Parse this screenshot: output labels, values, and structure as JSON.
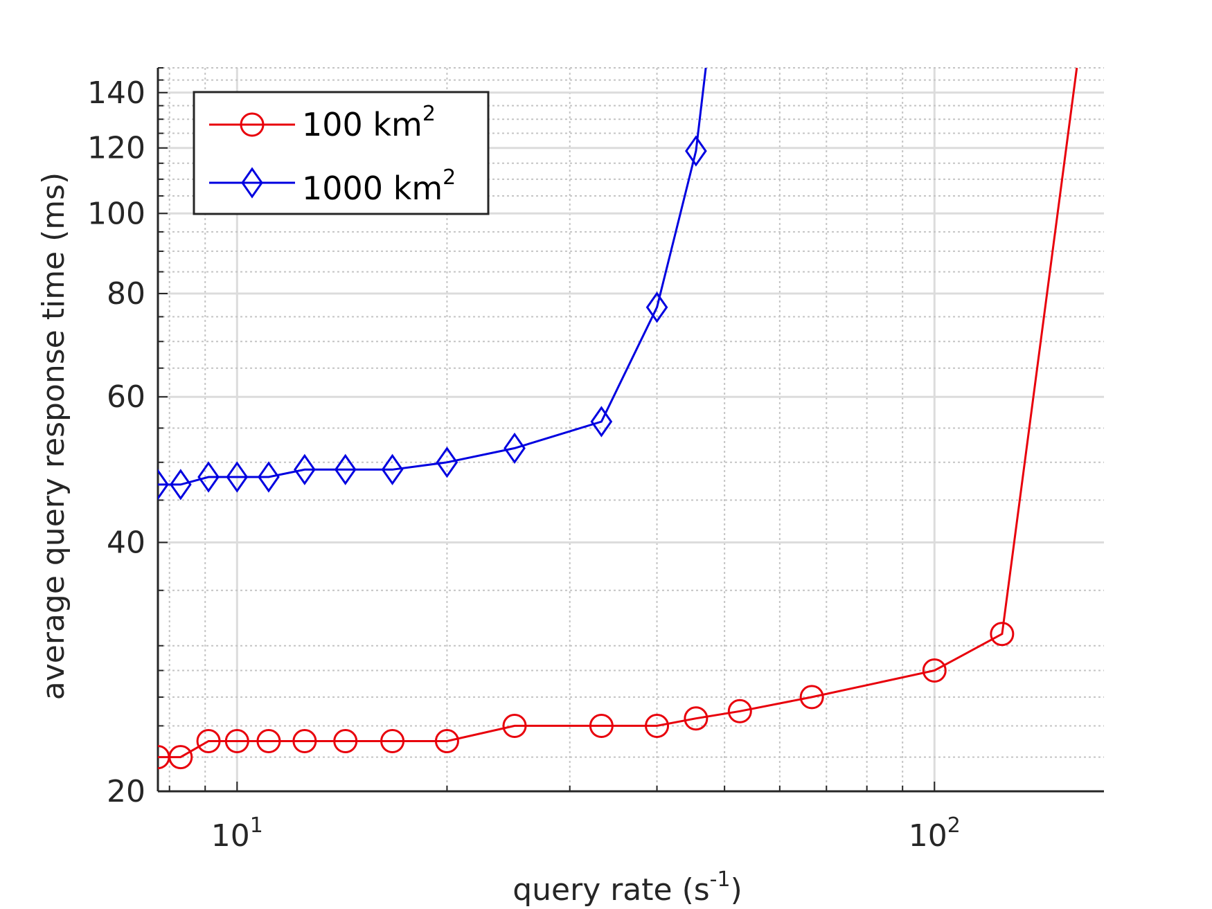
{
  "chart_data": {
    "type": "line",
    "title": "",
    "xlabel": "query rate (s",
    "xlabel_sup": "-1",
    "xlabel_suffix": ")",
    "ylabel": "average query response time (ms)",
    "x_scale": "log",
    "y_scale": "log",
    "xlim": [
      7.7,
      175
    ],
    "ylim": [
      20,
      150
    ],
    "grid": "major and minor",
    "legend_position": "top-left",
    "x_ticks": [
      {
        "value": 10,
        "base": "10",
        "exp": "1"
      },
      {
        "value": 100,
        "base": "10",
        "exp": "2"
      }
    ],
    "y_ticks": [
      20,
      40,
      60,
      80,
      100,
      120,
      140
    ],
    "series": [
      {
        "name": "100 km",
        "name_sup": "2",
        "color": "#e8000b",
        "marker": "circle",
        "x": [
          7.7,
          8.3,
          9.1,
          10,
          11.1,
          12.5,
          14.3,
          16.7,
          20,
          25,
          33.3,
          40,
          45.5,
          52.6,
          66.7,
          100,
          125,
          160
        ],
        "y": [
          22,
          22,
          23,
          23,
          23,
          23,
          23,
          23,
          23,
          24,
          24,
          24,
          24.5,
          25,
          26,
          28,
          31,
          150
        ]
      },
      {
        "name": "1000 km",
        "name_sup": "2",
        "color": "#0000e0",
        "marker": "diamond",
        "x": [
          7.7,
          8.3,
          9.1,
          10,
          11.1,
          12.5,
          14.3,
          16.7,
          20,
          25,
          33.3,
          40,
          45.5,
          47
        ],
        "y": [
          47,
          47,
          48,
          48,
          48,
          49,
          49,
          49,
          50,
          52,
          56,
          77,
          119,
          150
        ]
      }
    ]
  }
}
